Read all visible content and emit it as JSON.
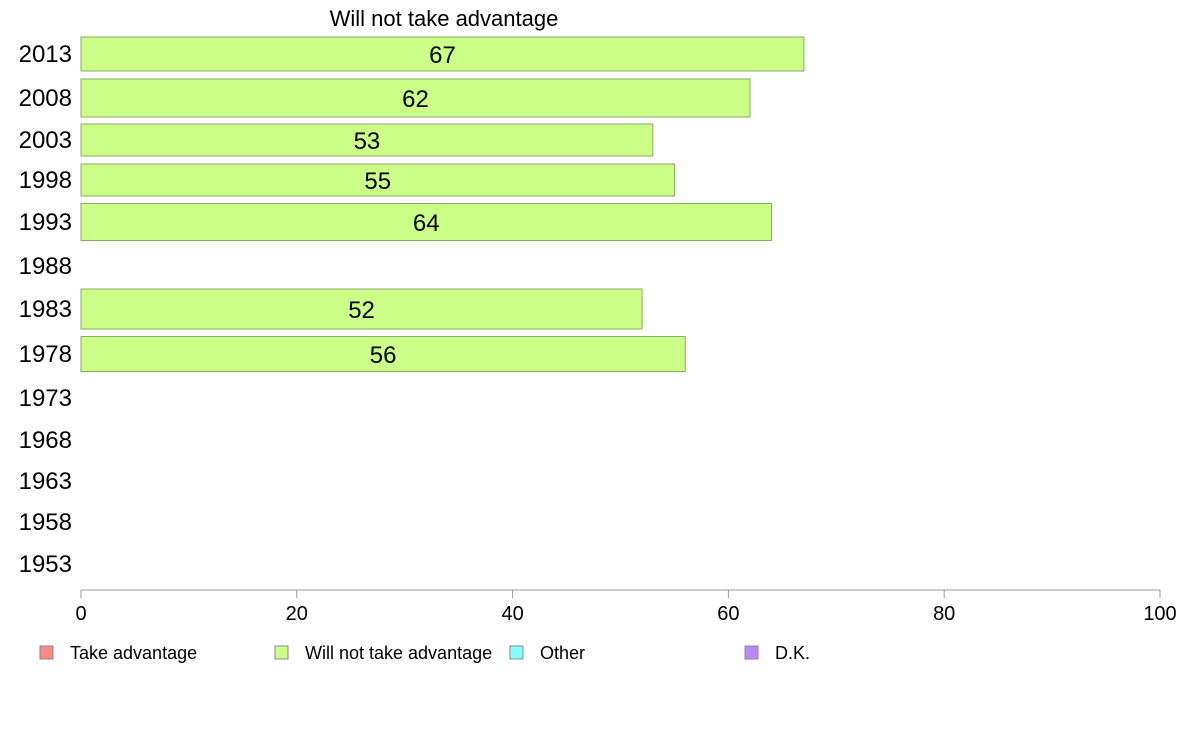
{
  "chart_data": {
    "type": "bar",
    "orientation": "horizontal",
    "title": "Will not take advantage",
    "categories": [
      "2013",
      "2008",
      "2003",
      "1998",
      "1993",
      "1988",
      "1983",
      "1978",
      "1973",
      "1968",
      "1963",
      "1958",
      "1953"
    ],
    "series": [
      {
        "name": "Will not take advantage",
        "color": "#ccff88",
        "values": [
          67,
          62,
          53,
          55,
          64,
          null,
          52,
          56,
          null,
          null,
          null,
          null,
          null
        ]
      }
    ],
    "xlim": [
      0,
      100
    ],
    "xticks": [
      0,
      20,
      40,
      60,
      80,
      100
    ],
    "grid": false,
    "legend": {
      "placement": "bottom",
      "items": [
        {
          "label": "Take advantage",
          "color": "#ff8888"
        },
        {
          "label": "Will not take advantage",
          "color": "#ccff88"
        },
        {
          "label": "Other",
          "color": "#88ffff"
        },
        {
          "label": "D.K.",
          "color": "#bb88ff"
        }
      ]
    }
  }
}
